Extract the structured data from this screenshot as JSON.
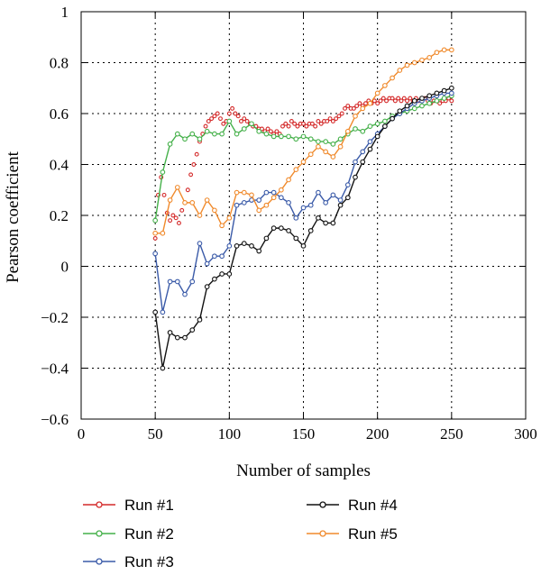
{
  "chart_data": {
    "type": "line",
    "xlabel": "Number of samples",
    "ylabel": "Pearson coefficient",
    "xlim": [
      0,
      300
    ],
    "ylim": [
      -0.6,
      1
    ],
    "xticks": [
      "0",
      "50",
      "100",
      "150",
      "200",
      "250",
      "300"
    ],
    "yticks": [
      "−0.6",
      "−0.4",
      "−0.2",
      "0",
      "0.2",
      "0.4",
      "0.6",
      "0.8",
      "1"
    ],
    "grid": true,
    "legend_position": "bottom",
    "series": [
      {
        "name": "Run #1",
        "color": "#d42a2a",
        "x": [
          50,
          52,
          54,
          56,
          58,
          60,
          62,
          64,
          66,
          68,
          70,
          72,
          74,
          76,
          78,
          80,
          82,
          84,
          86,
          88,
          90,
          92,
          94,
          96,
          98,
          100,
          102,
          104,
          106,
          108,
          110,
          112,
          114,
          116,
          118,
          120,
          122,
          124,
          126,
          128,
          130,
          132,
          134,
          136,
          138,
          140,
          142,
          144,
          146,
          148,
          150,
          152,
          154,
          156,
          158,
          160,
          162,
          164,
          166,
          168,
          170,
          172,
          174,
          176,
          178,
          180,
          182,
          184,
          186,
          188,
          190,
          192,
          194,
          196,
          198,
          200,
          202,
          204,
          206,
          208,
          210,
          212,
          214,
          216,
          218,
          220,
          222,
          224,
          226,
          228,
          230,
          232,
          234,
          236,
          238,
          240,
          242,
          244,
          246,
          248,
          250
        ],
        "y": [
          0.11,
          0.28,
          0.35,
          0.28,
          0.21,
          0.18,
          0.2,
          0.19,
          0.17,
          0.22,
          0.25,
          0.3,
          0.36,
          0.4,
          0.44,
          0.49,
          0.52,
          0.55,
          0.57,
          0.58,
          0.59,
          0.6,
          0.58,
          0.56,
          0.57,
          0.6,
          0.62,
          0.6,
          0.59,
          0.57,
          0.58,
          0.57,
          0.56,
          0.55,
          0.55,
          0.54,
          0.54,
          0.53,
          0.54,
          0.53,
          0.52,
          0.53,
          0.52,
          0.55,
          0.56,
          0.55,
          0.57,
          0.56,
          0.55,
          0.56,
          0.56,
          0.55,
          0.56,
          0.56,
          0.55,
          0.57,
          0.56,
          0.57,
          0.57,
          0.58,
          0.57,
          0.58,
          0.59,
          0.6,
          0.62,
          0.63,
          0.62,
          0.62,
          0.63,
          0.64,
          0.63,
          0.64,
          0.65,
          0.64,
          0.65,
          0.64,
          0.65,
          0.66,
          0.65,
          0.66,
          0.66,
          0.65,
          0.66,
          0.65,
          0.66,
          0.65,
          0.66,
          0.65,
          0.66,
          0.65,
          0.65,
          0.66,
          0.65,
          0.64,
          0.65,
          0.65,
          0.64,
          0.65,
          0.65,
          0.66,
          0.65
        ]
      },
      {
        "name": "Run #2",
        "color": "#44b049",
        "x": [
          50,
          55,
          60,
          65,
          70,
          75,
          80,
          85,
          90,
          95,
          100,
          105,
          110,
          115,
          120,
          125,
          130,
          135,
          140,
          145,
          150,
          155,
          160,
          165,
          170,
          175,
          180,
          185,
          190,
          195,
          200,
          205,
          210,
          215,
          220,
          225,
          230,
          235,
          240,
          245,
          250
        ],
        "y": [
          0.18,
          0.37,
          0.48,
          0.52,
          0.5,
          0.52,
          0.5,
          0.53,
          0.52,
          0.52,
          0.57,
          0.52,
          0.54,
          0.56,
          0.53,
          0.52,
          0.51,
          0.51,
          0.51,
          0.5,
          0.51,
          0.5,
          0.49,
          0.49,
          0.48,
          0.5,
          0.52,
          0.54,
          0.53,
          0.55,
          0.56,
          0.57,
          0.59,
          0.6,
          0.61,
          0.62,
          0.63,
          0.64,
          0.65,
          0.66,
          0.67
        ]
      },
      {
        "name": "Run #3",
        "color": "#3a5aa8",
        "x": [
          50,
          55,
          60,
          65,
          70,
          75,
          80,
          85,
          90,
          95,
          100,
          105,
          110,
          115,
          120,
          125,
          130,
          135,
          140,
          145,
          150,
          155,
          160,
          165,
          170,
          175,
          180,
          185,
          190,
          195,
          200,
          205,
          210,
          215,
          220,
          225,
          230,
          235,
          240,
          245,
          250
        ],
        "y": [
          0.05,
          -0.18,
          -0.06,
          -0.06,
          -0.11,
          -0.06,
          0.09,
          0.01,
          0.04,
          0.04,
          0.08,
          0.24,
          0.25,
          0.26,
          0.26,
          0.29,
          0.29,
          0.27,
          0.25,
          0.19,
          0.23,
          0.24,
          0.29,
          0.25,
          0.28,
          0.26,
          0.32,
          0.41,
          0.45,
          0.49,
          0.52,
          0.55,
          0.58,
          0.6,
          0.62,
          0.64,
          0.65,
          0.66,
          0.67,
          0.68,
          0.68
        ]
      },
      {
        "name": "Run #4",
        "color": "#111111",
        "x": [
          50,
          55,
          60,
          65,
          70,
          75,
          80,
          85,
          90,
          95,
          100,
          105,
          110,
          115,
          120,
          125,
          130,
          135,
          140,
          145,
          150,
          155,
          160,
          165,
          170,
          175,
          180,
          185,
          190,
          195,
          200,
          205,
          210,
          215,
          220,
          225,
          230,
          235,
          240,
          245,
          250
        ],
        "y": [
          -0.18,
          -0.4,
          -0.26,
          -0.28,
          -0.28,
          -0.25,
          -0.21,
          -0.08,
          -0.05,
          -0.03,
          -0.03,
          0.08,
          0.09,
          0.08,
          0.06,
          0.11,
          0.15,
          0.15,
          0.14,
          0.11,
          0.08,
          0.14,
          0.19,
          0.17,
          0.17,
          0.24,
          0.27,
          0.35,
          0.41,
          0.46,
          0.51,
          0.55,
          0.58,
          0.61,
          0.63,
          0.65,
          0.66,
          0.67,
          0.68,
          0.69,
          0.7
        ]
      },
      {
        "name": "Run #5",
        "color": "#f08a2c",
        "x": [
          50,
          55,
          60,
          65,
          70,
          75,
          80,
          85,
          90,
          95,
          100,
          105,
          110,
          115,
          120,
          125,
          130,
          135,
          140,
          145,
          150,
          155,
          160,
          165,
          170,
          175,
          180,
          185,
          190,
          195,
          200,
          205,
          210,
          215,
          220,
          225,
          230,
          235,
          240,
          245,
          250
        ],
        "y": [
          0.13,
          0.13,
          0.26,
          0.31,
          0.25,
          0.25,
          0.2,
          0.26,
          0.22,
          0.16,
          0.19,
          0.29,
          0.29,
          0.28,
          0.22,
          0.24,
          0.27,
          0.3,
          0.34,
          0.38,
          0.41,
          0.44,
          0.47,
          0.45,
          0.43,
          0.47,
          0.53,
          0.59,
          0.62,
          0.64,
          0.68,
          0.71,
          0.74,
          0.77,
          0.79,
          0.8,
          0.81,
          0.82,
          0.84,
          0.85,
          0.85
        ]
      }
    ]
  }
}
